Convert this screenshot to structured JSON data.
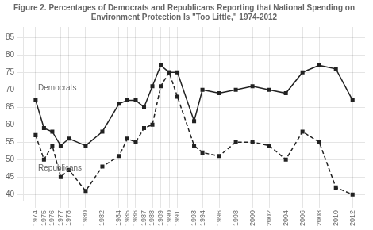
{
  "chart_data": {
    "type": "line",
    "title": "Figure 2. Percentages of Democrats and Republicans Reporting that National Spending on Environment Protection Is \"Too Little,\" 1974-2012",
    "x": [
      1974,
      1975,
      1976,
      1977,
      1978,
      1980,
      1982,
      1984,
      1985,
      1986,
      1987,
      1988,
      1989,
      1990,
      1991,
      1993,
      1994,
      1996,
      1998,
      2000,
      2002,
      2004,
      2006,
      2008,
      2010,
      2012
    ],
    "series": [
      {
        "name": "Democrats",
        "color": "#222222",
        "line_style": "solid",
        "marker": "square",
        "values": [
          67,
          59,
          58,
          54,
          56,
          54,
          58,
          66,
          67,
          67,
          65,
          71,
          77,
          75,
          75,
          61,
          70,
          69,
          70,
          71,
          70,
          69,
          75,
          77,
          76,
          67
        ]
      },
      {
        "name": "Republicans",
        "color": "#222222",
        "line_style": "dashed",
        "marker": "square",
        "values": [
          57,
          50,
          54,
          45,
          47,
          41,
          48,
          51,
          56,
          55,
          59,
          60,
          71,
          75,
          68,
          54,
          52,
          51,
          55,
          55,
          54,
          50,
          58,
          55,
          42,
          40
        ]
      }
    ],
    "annotations": [
      {
        "text": "Democrats",
        "x": 1974.3,
        "y": 70.5
      },
      {
        "text": "Republicans",
        "x": 1974.3,
        "y": 47.5
      }
    ],
    "xlim": [
      1972.5,
      2013.5
    ],
    "xticks": [
      1974,
      1975,
      1976,
      1977,
      1978,
      1980,
      1982,
      1984,
      1985,
      1986,
      1987,
      1988,
      1989,
      1990,
      1991,
      1993,
      1994,
      1996,
      1998,
      2000,
      2002,
      2004,
      2006,
      2008,
      2010,
      2012
    ],
    "ylim": [
      38,
      88
    ],
    "yticks": [
      40,
      45,
      50,
      55,
      60,
      65,
      70,
      75,
      80,
      85
    ],
    "grid": true
  }
}
